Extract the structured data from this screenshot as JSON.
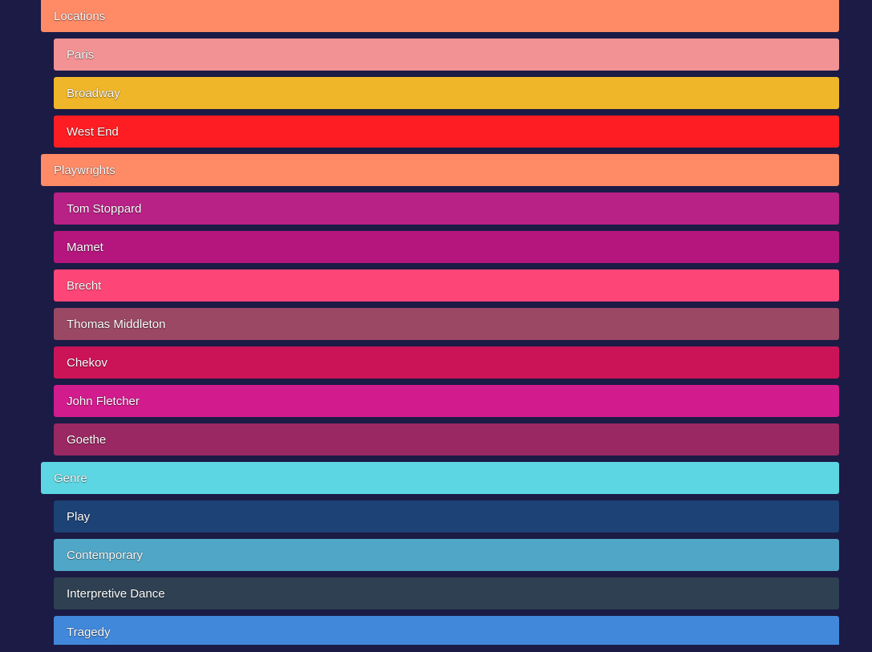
{
  "tree": [
    {
      "kind": "group",
      "label": "Locations",
      "color": "#fe8a66"
    },
    {
      "kind": "item",
      "label": "Paris",
      "color": "#f29294"
    },
    {
      "kind": "item",
      "label": "Broadway",
      "color": "#f0b629"
    },
    {
      "kind": "item",
      "label": "West End",
      "color": "#fe1d22"
    },
    {
      "kind": "group",
      "label": "Playwrights",
      "color": "#fe8a66"
    },
    {
      "kind": "item",
      "label": "Tom Stoppard",
      "color": "#b82185"
    },
    {
      "kind": "item",
      "label": "Mamet",
      "color": "#b4167e"
    },
    {
      "kind": "item",
      "label": "Brecht",
      "color": "#fd4677"
    },
    {
      "kind": "item",
      "label": "Thomas Middleton",
      "color": "#9a4863"
    },
    {
      "kind": "item",
      "label": "Chekov",
      "color": "#cb1457"
    },
    {
      "kind": "item",
      "label": "John Fletcher",
      "color": "#d21b8c"
    },
    {
      "kind": "item",
      "label": "Goethe",
      "color": "#9a2862"
    },
    {
      "kind": "group",
      "label": "Genre",
      "color": "#5cd6e2"
    },
    {
      "kind": "item",
      "label": "Play",
      "color": "#1d4275"
    },
    {
      "kind": "item",
      "label": "Contemporary",
      "color": "#50a6c6"
    },
    {
      "kind": "item",
      "label": "Interpretive Dance",
      "color": "#2e4051"
    },
    {
      "kind": "item",
      "label": "Tragedy",
      "color": "#4188db"
    }
  ]
}
